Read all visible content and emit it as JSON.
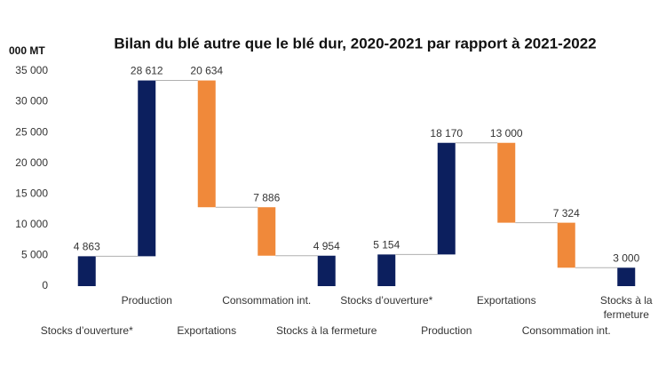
{
  "chart_data": {
    "type": "waterfall",
    "title": "Bilan du blé autre que le blé dur, 2020-2021 par rapport à 2021-2022",
    "y_axis_label": "000 MT",
    "categories": [
      "Stocks d’ouverture*",
      "Production",
      "Exportations",
      "Consommation int.",
      "Stocks à la fermeture",
      "Stocks d’ouverture*",
      "Production",
      "Exportations",
      "Consommation int.",
      "Stocks à la fermeture"
    ],
    "values": [
      4863,
      28612,
      20634,
      7886,
      4954,
      5154,
      18170,
      13000,
      7324,
      3000
    ],
    "value_labels": [
      "4 863",
      "28 612",
      "20 634",
      "7 886",
      "4 954",
      "5 154",
      "18 170",
      "13 000",
      "7 324",
      "3 000"
    ],
    "measures": [
      "total",
      "increase",
      "decrease",
      "decrease",
      "total",
      "total",
      "increase",
      "decrease",
      "decrease",
      "total"
    ],
    "colors": {
      "total": "#0c1f5e",
      "increase": "#0c1f5e",
      "decrease": "#f0893a"
    },
    "ylim": [
      0,
      35000
    ],
    "yticks": [
      {
        "value": 0,
        "label": "0"
      },
      {
        "value": 5000,
        "label": "5 000"
      },
      {
        "value": 10000,
        "label": "10 000"
      },
      {
        "value": 15000,
        "label": "15 000"
      },
      {
        "value": 20000,
        "label": "20 000"
      },
      {
        "value": 25000,
        "label": "25 000"
      },
      {
        "value": 30000,
        "label": "30 000"
      },
      {
        "value": 35000,
        "label": "35 000"
      }
    ],
    "grid": false
  }
}
